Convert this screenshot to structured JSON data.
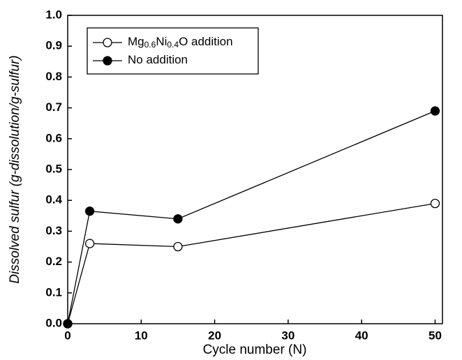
{
  "chart_data": {
    "type": "line",
    "x_label": "Cycle number (N)",
    "y_label": "Dissolved sulfur (g-dissolution/g-sulfur)",
    "x": [
      0,
      3,
      15,
      50
    ],
    "series": [
      {
        "name": "Mg0.6Ni0.4O addition",
        "color": "#000000",
        "marker": "open",
        "values": [
          0,
          0.26,
          0.25,
          0.39
        ]
      },
      {
        "name": "No addition",
        "color": "#000000",
        "marker": "filled",
        "values": [
          0,
          0.365,
          0.34,
          0.69
        ]
      }
    ],
    "xlim": [
      0,
      51
    ],
    "xticks": [
      0,
      10,
      20,
      30,
      40,
      50
    ],
    "ylim": [
      0,
      1
    ],
    "yticks": [
      {
        "value": 0,
        "label": "0.0"
      },
      0.1,
      0.2,
      0.3,
      0.4,
      0.5,
      0.6,
      0.7,
      0.8,
      0.9,
      {
        "value": 1,
        "label": "1.0"
      }
    ],
    "legend": "upper left"
  }
}
